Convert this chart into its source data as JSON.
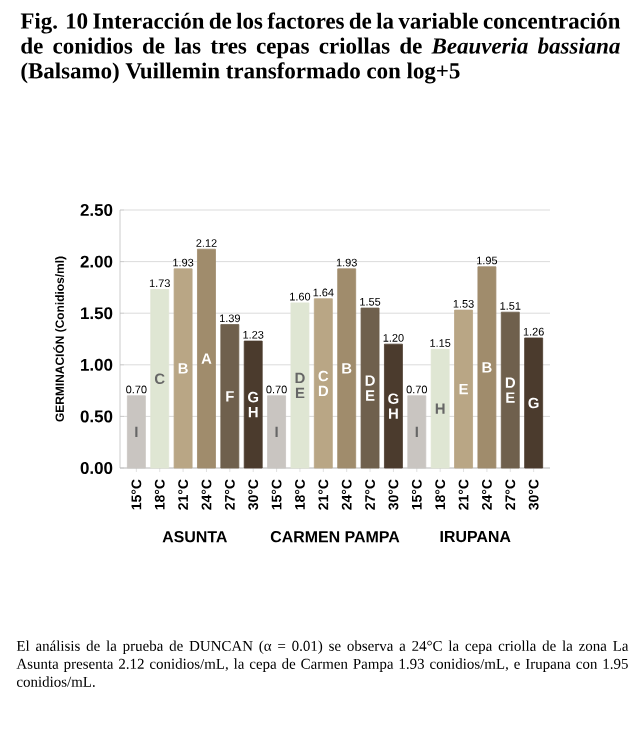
{
  "chart_data": {
    "type": "bar",
    "title": "Fig. 10 Interacción de los factores de la variable concentración de conidios de las tres cepas criollas de *Beauveria bassiana* (Balsamo) Vuillemin transformado con log+5",
    "ylabel": "GERMINACIÓN (Conidios/ml)",
    "categories": [
      "15°C",
      "18°C",
      "21°C",
      "24°C",
      "27°C",
      "30°C",
      "15°C",
      "18°C",
      "21°C",
      "24°C",
      "27°C",
      "30°C",
      "15°C",
      "18°C",
      "21°C",
      "24°C",
      "27°C",
      "30°C"
    ],
    "values": [
      0.7,
      1.73,
      1.93,
      2.12,
      1.39,
      1.23,
      0.7,
      1.6,
      1.64,
      1.93,
      1.55,
      1.2,
      0.7,
      1.15,
      1.53,
      1.95,
      1.51,
      1.26
    ],
    "colors": [
      "#c9c5c1",
      "#dfe6d3",
      "#b9a685",
      "#a08c6c",
      "#6f604d",
      "#4b3b2d",
      "#c9c5c1",
      "#dfe6d3",
      "#b9a685",
      "#a08c6c",
      "#6f604d",
      "#4b3b2d",
      "#c9c5c1",
      "#dfe6d3",
      "#b9a685",
      "#a08c6c",
      "#6f604d",
      "#4b3b2d"
    ],
    "ylim": [
      0,
      2.5
    ],
    "yticks": [
      {
        "value": 0,
        "label": "0.00"
      },
      {
        "value": 0.5,
        "label": "0.50"
      },
      {
        "value": 1,
        "label": "1.00"
      },
      {
        "value": 1.5,
        "label": "1.50"
      },
      {
        "value": 2,
        "label": "2.00"
      },
      {
        "value": 2.5,
        "label": "2.50"
      }
    ],
    "grid": "y",
    "value_labels": [
      "0.70",
      "1.73",
      "1.93",
      "2.12",
      "1.39",
      "1.23",
      "0.70",
      "1.60",
      "1.64",
      "1.93",
      "1.55",
      "1.20",
      "0.70",
      "1.15",
      "1.53",
      "1.95",
      "1.51",
      "1.26"
    ],
    "annotations": [
      "ASUNTA",
      "CARMEN PAMPA",
      "IRUPANA",
      "I",
      "C",
      "B",
      "A",
      "F",
      "G H",
      "I",
      "D E",
      "C D",
      "B",
      "D E",
      "G H",
      "I",
      "H",
      "E",
      "B",
      "D E",
      "G",
      "El análisis de la prueba de DUNCAN (α = 0.01) se observa a 24°C la cepa criolla de la zona La Asunta presenta 2.12 conidios/mL, la cepa de Carmen Pampa 1.93 conidios/mL, e Irupana con 1.95 conidios/mL."
    ]
  }
}
